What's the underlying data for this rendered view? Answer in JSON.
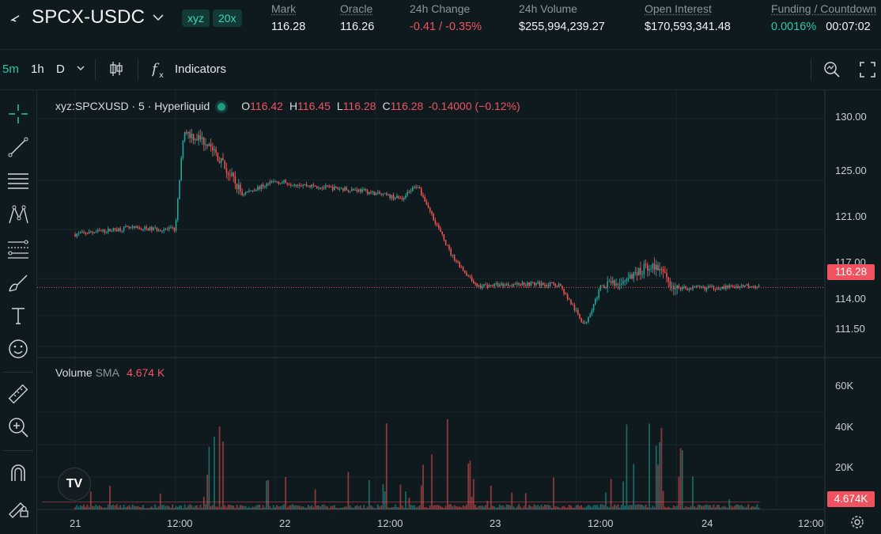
{
  "header": {
    "pair": "SPCX-USDC",
    "badges": [
      "xyz",
      "20x"
    ],
    "stats": [
      {
        "label": "Mark",
        "value": "116.28"
      },
      {
        "label": "Oracle",
        "value": "116.26"
      },
      {
        "label": "24h Change",
        "value": "-0.41 / -0.35%"
      },
      {
        "label": "24h Volume",
        "value": "$255,994,239.27"
      },
      {
        "label": "Open Interest",
        "value": "$170,593,341.48"
      },
      {
        "label": "Funding / Countdown",
        "funding": "0.0016%",
        "countdown": "00:07:02"
      }
    ]
  },
  "toolbar": {
    "intervals": [
      "5m",
      "1h",
      "D"
    ],
    "active_interval": "5m",
    "indicators_label": "Indicators"
  },
  "legend": {
    "symbol": "xyz:SPCXUSD · 5 · Hyperliquid",
    "o_key": "O",
    "o": "116.42",
    "h_key": "H",
    "h": "116.45",
    "l_key": "L",
    "l": "116.28",
    "c_key": "C",
    "c": "116.28",
    "change": "-0.14000 (−0.12%)"
  },
  "volume_legend": {
    "title": "Volume",
    "sub": "SMA",
    "value": "4.674 K"
  },
  "price_tag": "116.28",
  "volume_tag": "4.674K",
  "price_axis": [
    "130.00",
    "125.00",
    "121.00",
    "117.00",
    "114.00",
    "111.50"
  ],
  "volume_axis": [
    "60K",
    "40K",
    "20K"
  ],
  "time_axis": [
    "21",
    "12:00",
    "22",
    "12:00",
    "23",
    "12:00",
    "24",
    "12:00"
  ],
  "colors": {
    "up": "#26a69a",
    "down": "#ef5350",
    "accent": "#2fc5ad"
  },
  "chart_data": {
    "type": "line",
    "price_ylim": [
      110.2,
      131.8
    ],
    "volume_ylim": [
      0,
      78000
    ],
    "x_unit": "date/time (5m candles)",
    "price_series": {
      "name": "SPCXUSD",
      "x": [
        "21 00:00",
        "21 06:00",
        "21 12:00",
        "21 13:00",
        "21 16:00",
        "21 20:00",
        "22 00:00",
        "22 06:00",
        "22 10:00",
        "22 15:00",
        "22 17:00",
        "22 21:00",
        "23 00:00",
        "23 06:00",
        "23 10:00",
        "23 13:00",
        "23 15:00",
        "23 18:00",
        "23 21:00",
        "24 00:00",
        "24 06:00",
        "24 09:00",
        "24 10:00"
      ],
      "y": [
        120.6,
        121.1,
        121.0,
        129.0,
        128.0,
        123.9,
        124.9,
        124.4,
        124.2,
        123.5,
        124.6,
        119.0,
        116.4,
        116.6,
        116.5,
        113.2,
        116.4,
        116.7,
        118.3,
        116.2,
        116.3,
        116.5,
        116.3
      ]
    },
    "last_price": 116.28,
    "volume_sma": 4674
  }
}
